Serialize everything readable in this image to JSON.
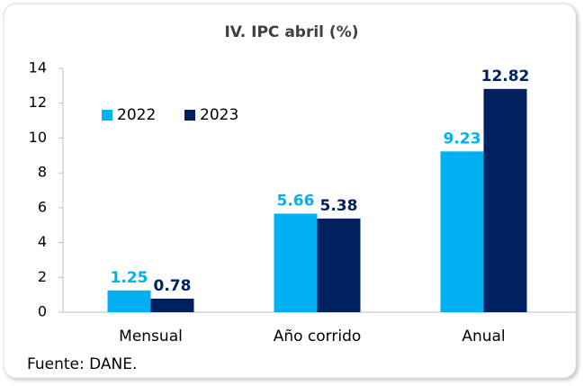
{
  "chart_data": {
    "type": "bar",
    "title": "IV. IPC abril (%)",
    "categories": [
      "Mensual",
      "Año corrido",
      "Anual"
    ],
    "series": [
      {
        "name": "2022",
        "color": "#00b0f0",
        "values": [
          1.25,
          5.66,
          9.23
        ]
      },
      {
        "name": "2023",
        "color": "#002060",
        "values": [
          0.78,
          5.38,
          12.82
        ]
      }
    ],
    "ylim": [
      0,
      14
    ],
    "yticks": [
      0,
      2,
      4,
      6,
      8,
      10,
      12,
      14
    ],
    "grid": false,
    "legend": "upper left",
    "source": "Fuente: DANE."
  }
}
